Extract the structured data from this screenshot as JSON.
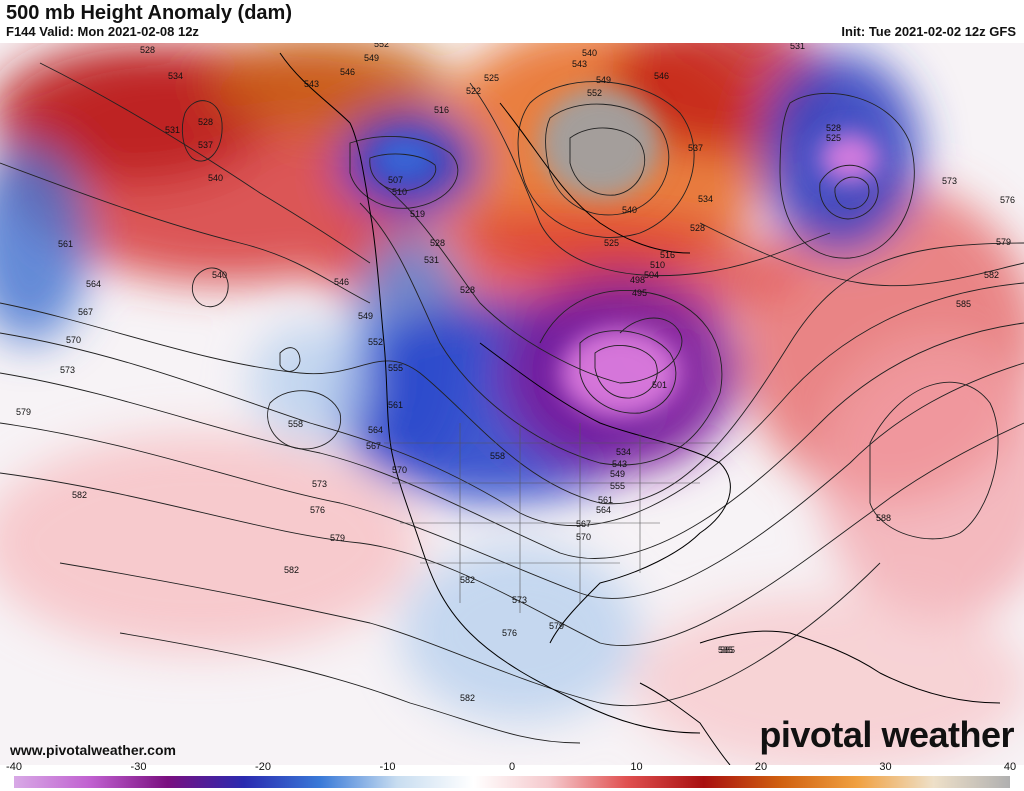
{
  "header": {
    "title": "500 mb Height Anomaly (dam)",
    "valid": "F144 Valid: Mon 2021-02-08 12z",
    "init": "Init: Tue 2021-02-02 12z GFS"
  },
  "footer": {
    "url": "www.pivotalweather.com",
    "brand": "pivotal weather"
  },
  "colorbar": {
    "ticks": [
      "-40",
      "-30",
      "-20",
      "-10",
      "0",
      "10",
      "20",
      "30",
      "40"
    ],
    "stops": [
      "#d8a9e6",
      "#c060d0",
      "#7a1080",
      "#2a2ab0",
      "#3a7ad8",
      "#c8ddf0",
      "#ffffff",
      "#f5c8cc",
      "#e05050",
      "#a81010",
      "#d06010",
      "#f0a040",
      "#eee0c8",
      "#b0b0b0"
    ]
  },
  "contour_labels": [
    "528",
    "534",
    "528",
    "531",
    "537",
    "540",
    "540",
    "561",
    "564",
    "567",
    "570",
    "573",
    "579",
    "582",
    "546",
    "549",
    "552",
    "555",
    "558",
    "561",
    "564",
    "567",
    "570",
    "573",
    "576",
    "579",
    "582",
    "552",
    "549",
    "546",
    "543",
    "516",
    "522",
    "525",
    "507",
    "510",
    "519",
    "528",
    "531",
    "528",
    "540",
    "543",
    "549",
    "552",
    "546",
    "537",
    "534",
    "540",
    "528",
    "525",
    "510",
    "516",
    "498",
    "495",
    "504",
    "501",
    "534",
    "543",
    "549",
    "555",
    "561",
    "564",
    "567",
    "570",
    "573",
    "576",
    "579",
    "582",
    "585",
    "588",
    "531",
    "528",
    "525",
    "573",
    "576",
    "579",
    "582",
    "585",
    "585",
    "582",
    "558"
  ],
  "colors": {
    "negative": "#2a4fd0",
    "strong_negative": "#8a1a9a",
    "positive": "#d02020",
    "strong_positive": "#c86010",
    "extreme_positive": "#9a9a9a"
  }
}
